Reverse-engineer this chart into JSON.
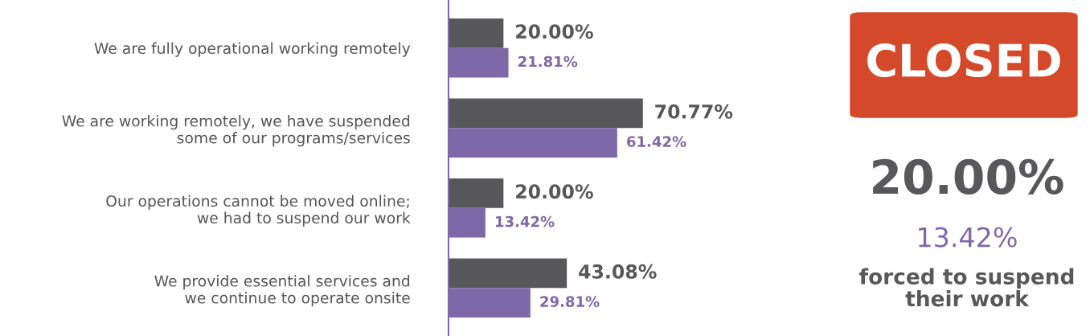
{
  "chart_data": {
    "type": "bar",
    "orientation": "horizontal",
    "categories": [
      "We are fully operational working remotely",
      "We are working remotely, we have suspended\nsome of our programs/services",
      "Our operations cannot be moved online;\nwe had to suspend our work",
      "We provide essential services and\nwe continue to operate onsite"
    ],
    "series": [
      {
        "color": "#58585a",
        "values": [
          20.0,
          70.77,
          20.0,
          43.08
        ],
        "value_labels": [
          "20.00%",
          "70.77%",
          "20.00%",
          "43.08%"
        ]
      },
      {
        "color": "#7f68a8",
        "values": [
          21.81,
          61.42,
          13.42,
          29.81
        ],
        "value_labels": [
          "21.81%",
          "61.42%",
          "13.42%",
          "29.81%"
        ]
      }
    ],
    "annotations": [
      "CLOSED",
      "20.00%",
      "13.42%",
      "forced to suspend\ntheir work"
    ],
    "grid": false,
    "legend": false
  }
}
